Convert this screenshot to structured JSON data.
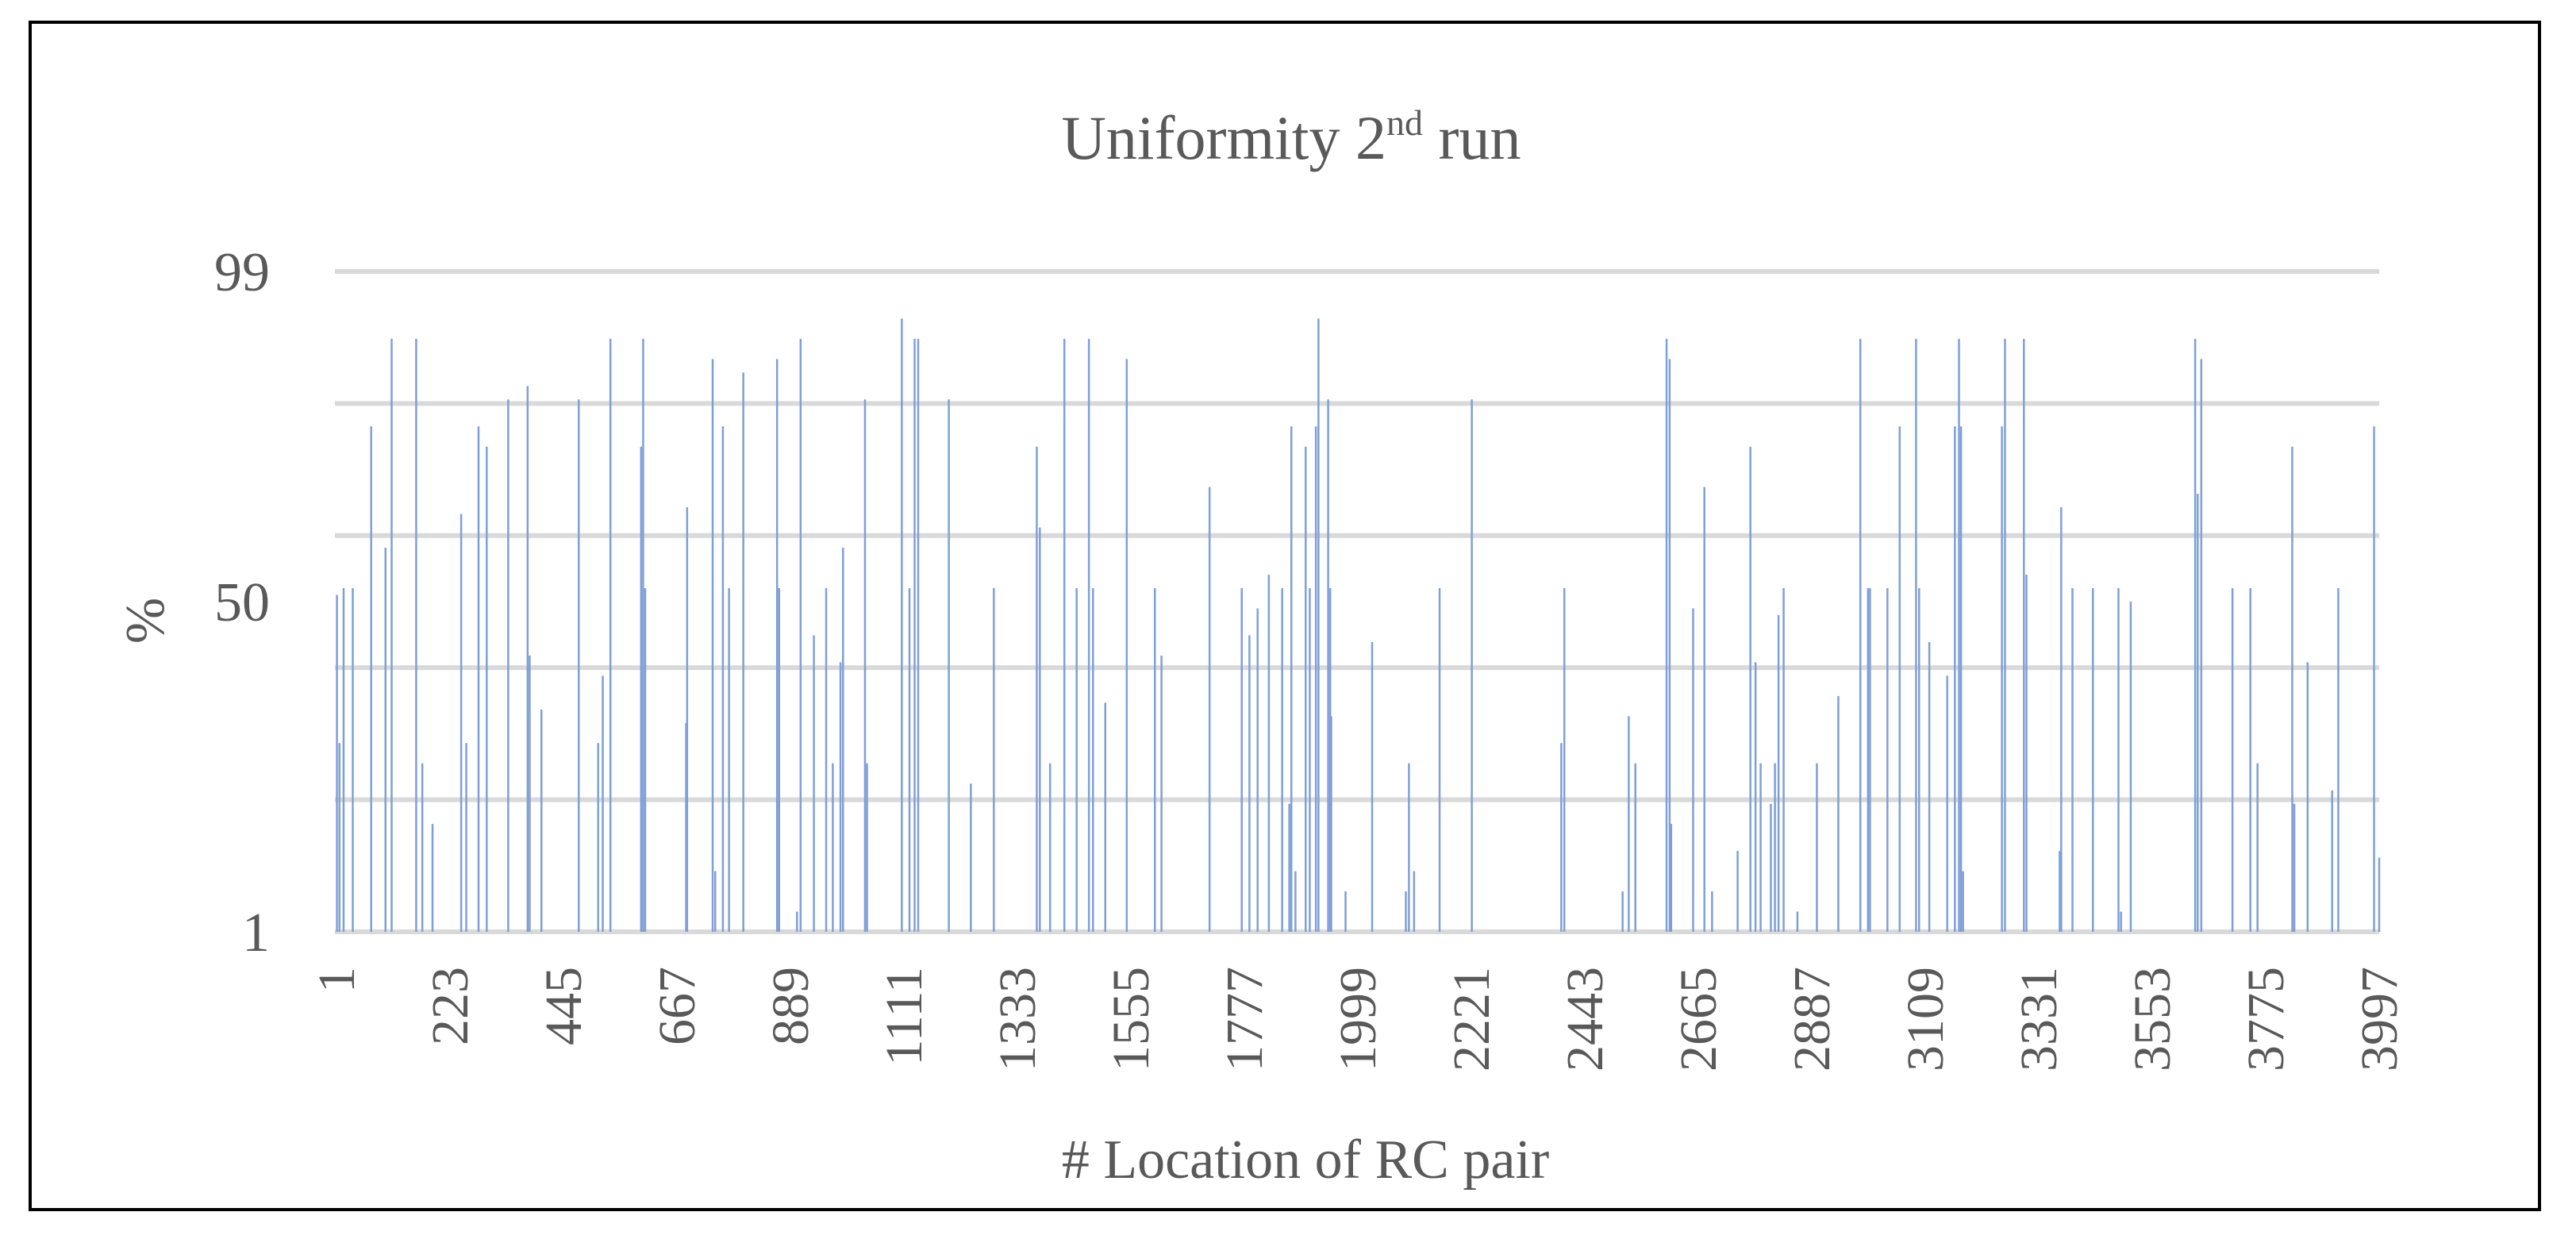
{
  "chart_data": {
    "type": "bar",
    "title": "Uniformity 2",
    "title_superscript": "nd",
    "title_suffix": " run",
    "xlabel": "# Location of RC pair",
    "ylabel": "%",
    "ylim": [
      1,
      99
    ],
    "y_tick_labels": [
      "1",
      "50",
      "99"
    ],
    "x_tick_labels": [
      "1",
      "223",
      "445",
      "667",
      "889",
      "1111",
      "1333",
      "1555",
      "1777",
      "1999",
      "2221",
      "2443",
      "2665",
      "2887",
      "3109",
      "3331",
      "3553",
      "3775",
      "3997"
    ],
    "x_range": [
      1,
      4000
    ],
    "gridlines": [
      1,
      20.6,
      40.2,
      59.8,
      79.4,
      99
    ],
    "grid": true,
    "legend": "none",
    "bar_color": "#7f9fd8",
    "points": [
      {
        "x": 5,
        "y": 51
      },
      {
        "x": 10,
        "y": 29
      },
      {
        "x": 18,
        "y": 52
      },
      {
        "x": 36,
        "y": 52
      },
      {
        "x": 72,
        "y": 76
      },
      {
        "x": 100,
        "y": 58
      },
      {
        "x": 112,
        "y": 89
      },
      {
        "x": 160,
        "y": 89
      },
      {
        "x": 172,
        "y": 26
      },
      {
        "x": 192,
        "y": 17
      },
      {
        "x": 248,
        "y": 63
      },
      {
        "x": 258,
        "y": 29
      },
      {
        "x": 282,
        "y": 76
      },
      {
        "x": 298,
        "y": 73
      },
      {
        "x": 340,
        "y": 80
      },
      {
        "x": 378,
        "y": 82
      },
      {
        "x": 382,
        "y": 42
      },
      {
        "x": 405,
        "y": 34
      },
      {
        "x": 478,
        "y": 80
      },
      {
        "x": 516,
        "y": 29
      },
      {
        "x": 525,
        "y": 39
      },
      {
        "x": 540,
        "y": 89
      },
      {
        "x": 600,
        "y": 73
      },
      {
        "x": 604,
        "y": 89
      },
      {
        "x": 608,
        "y": 52
      },
      {
        "x": 688,
        "y": 32
      },
      {
        "x": 690,
        "y": 64
      },
      {
        "x": 740,
        "y": 86
      },
      {
        "x": 745,
        "y": 10
      },
      {
        "x": 760,
        "y": 76
      },
      {
        "x": 772,
        "y": 52
      },
      {
        "x": 800,
        "y": 84
      },
      {
        "x": 866,
        "y": 86
      },
      {
        "x": 870,
        "y": 52
      },
      {
        "x": 912,
        "y": 89
      },
      {
        "x": 905,
        "y": 4
      },
      {
        "x": 938,
        "y": 45
      },
      {
        "x": 962,
        "y": 52
      },
      {
        "x": 975,
        "y": 26
      },
      {
        "x": 990,
        "y": 41
      },
      {
        "x": 995,
        "y": 58
      },
      {
        "x": 1038,
        "y": 80
      },
      {
        "x": 1042,
        "y": 26
      },
      {
        "x": 1110,
        "y": 92
      },
      {
        "x": 1125,
        "y": 52
      },
      {
        "x": 1135,
        "y": 89
      },
      {
        "x": 1142,
        "y": 89
      },
      {
        "x": 1202,
        "y": 80
      },
      {
        "x": 1245,
        "y": 23
      },
      {
        "x": 1290,
        "y": 52
      },
      {
        "x": 1374,
        "y": 73
      },
      {
        "x": 1380,
        "y": 61
      },
      {
        "x": 1400,
        "y": 26
      },
      {
        "x": 1428,
        "y": 89
      },
      {
        "x": 1452,
        "y": 52
      },
      {
        "x": 1476,
        "y": 89
      },
      {
        "x": 1484,
        "y": 52
      },
      {
        "x": 1508,
        "y": 35
      },
      {
        "x": 1550,
        "y": 86
      },
      {
        "x": 1605,
        "y": 52
      },
      {
        "x": 1618,
        "y": 42
      },
      {
        "x": 1712,
        "y": 67
      },
      {
        "x": 1775,
        "y": 52
      },
      {
        "x": 1790,
        "y": 45
      },
      {
        "x": 1806,
        "y": 49
      },
      {
        "x": 1828,
        "y": 54
      },
      {
        "x": 1854,
        "y": 52
      },
      {
        "x": 1868,
        "y": 20
      },
      {
        "x": 1872,
        "y": 76
      },
      {
        "x": 1880,
        "y": 10
      },
      {
        "x": 1900,
        "y": 73
      },
      {
        "x": 1908,
        "y": 52
      },
      {
        "x": 1920,
        "y": 76
      },
      {
        "x": 1925,
        "y": 92
      },
      {
        "x": 1944,
        "y": 80
      },
      {
        "x": 1948,
        "y": 52
      },
      {
        "x": 1950,
        "y": 33
      },
      {
        "x": 1978,
        "y": 7
      },
      {
        "x": 2030,
        "y": 44
      },
      {
        "x": 2096,
        "y": 7
      },
      {
        "x": 2102,
        "y": 26
      },
      {
        "x": 2112,
        "y": 10
      },
      {
        "x": 2162,
        "y": 52
      },
      {
        "x": 2225,
        "y": 80
      },
      {
        "x": 2400,
        "y": 29
      },
      {
        "x": 2406,
        "y": 52
      },
      {
        "x": 2520,
        "y": 7
      },
      {
        "x": 2532,
        "y": 33
      },
      {
        "x": 2545,
        "y": 26
      },
      {
        "x": 2606,
        "y": 89
      },
      {
        "x": 2612,
        "y": 86
      },
      {
        "x": 2615,
        "y": 17
      },
      {
        "x": 2658,
        "y": 49
      },
      {
        "x": 2680,
        "y": 67
      },
      {
        "x": 2695,
        "y": 7
      },
      {
        "x": 2745,
        "y": 13
      },
      {
        "x": 2770,
        "y": 73
      },
      {
        "x": 2780,
        "y": 41
      },
      {
        "x": 2790,
        "y": 26
      },
      {
        "x": 2810,
        "y": 20
      },
      {
        "x": 2818,
        "y": 26
      },
      {
        "x": 2825,
        "y": 48
      },
      {
        "x": 2835,
        "y": 52
      },
      {
        "x": 2862,
        "y": 4
      },
      {
        "x": 2900,
        "y": 26
      },
      {
        "x": 2942,
        "y": 36
      },
      {
        "x": 2985,
        "y": 89
      },
      {
        "x": 3000,
        "y": 52
      },
      {
        "x": 3004,
        "y": 52
      },
      {
        "x": 3038,
        "y": 52
      },
      {
        "x": 3062,
        "y": 76
      },
      {
        "x": 3094,
        "y": 89
      },
      {
        "x": 3100,
        "y": 52
      },
      {
        "x": 3120,
        "y": 44
      },
      {
        "x": 3155,
        "y": 39
      },
      {
        "x": 3170,
        "y": 76
      },
      {
        "x": 3178,
        "y": 89
      },
      {
        "x": 3182,
        "y": 76
      },
      {
        "x": 3186,
        "y": 10
      },
      {
        "x": 3262,
        "y": 76
      },
      {
        "x": 3268,
        "y": 89
      },
      {
        "x": 3305,
        "y": 89
      },
      {
        "x": 3310,
        "y": 54
      },
      {
        "x": 3375,
        "y": 13
      },
      {
        "x": 3378,
        "y": 64
      },
      {
        "x": 3400,
        "y": 52
      },
      {
        "x": 3440,
        "y": 52
      },
      {
        "x": 3490,
        "y": 52
      },
      {
        "x": 3495,
        "y": 4
      },
      {
        "x": 3514,
        "y": 50
      },
      {
        "x": 3640,
        "y": 89
      },
      {
        "x": 3645,
        "y": 66
      },
      {
        "x": 3652,
        "y": 86
      },
      {
        "x": 3713,
        "y": 52
      },
      {
        "x": 3748,
        "y": 52
      },
      {
        "x": 3762,
        "y": 26
      },
      {
        "x": 3830,
        "y": 73
      },
      {
        "x": 3834,
        "y": 20
      },
      {
        "x": 3860,
        "y": 41
      },
      {
        "x": 3908,
        "y": 22
      },
      {
        "x": 3920,
        "y": 52
      },
      {
        "x": 3990,
        "y": 76
      },
      {
        "x": 4000,
        "y": 12
      }
    ]
  }
}
